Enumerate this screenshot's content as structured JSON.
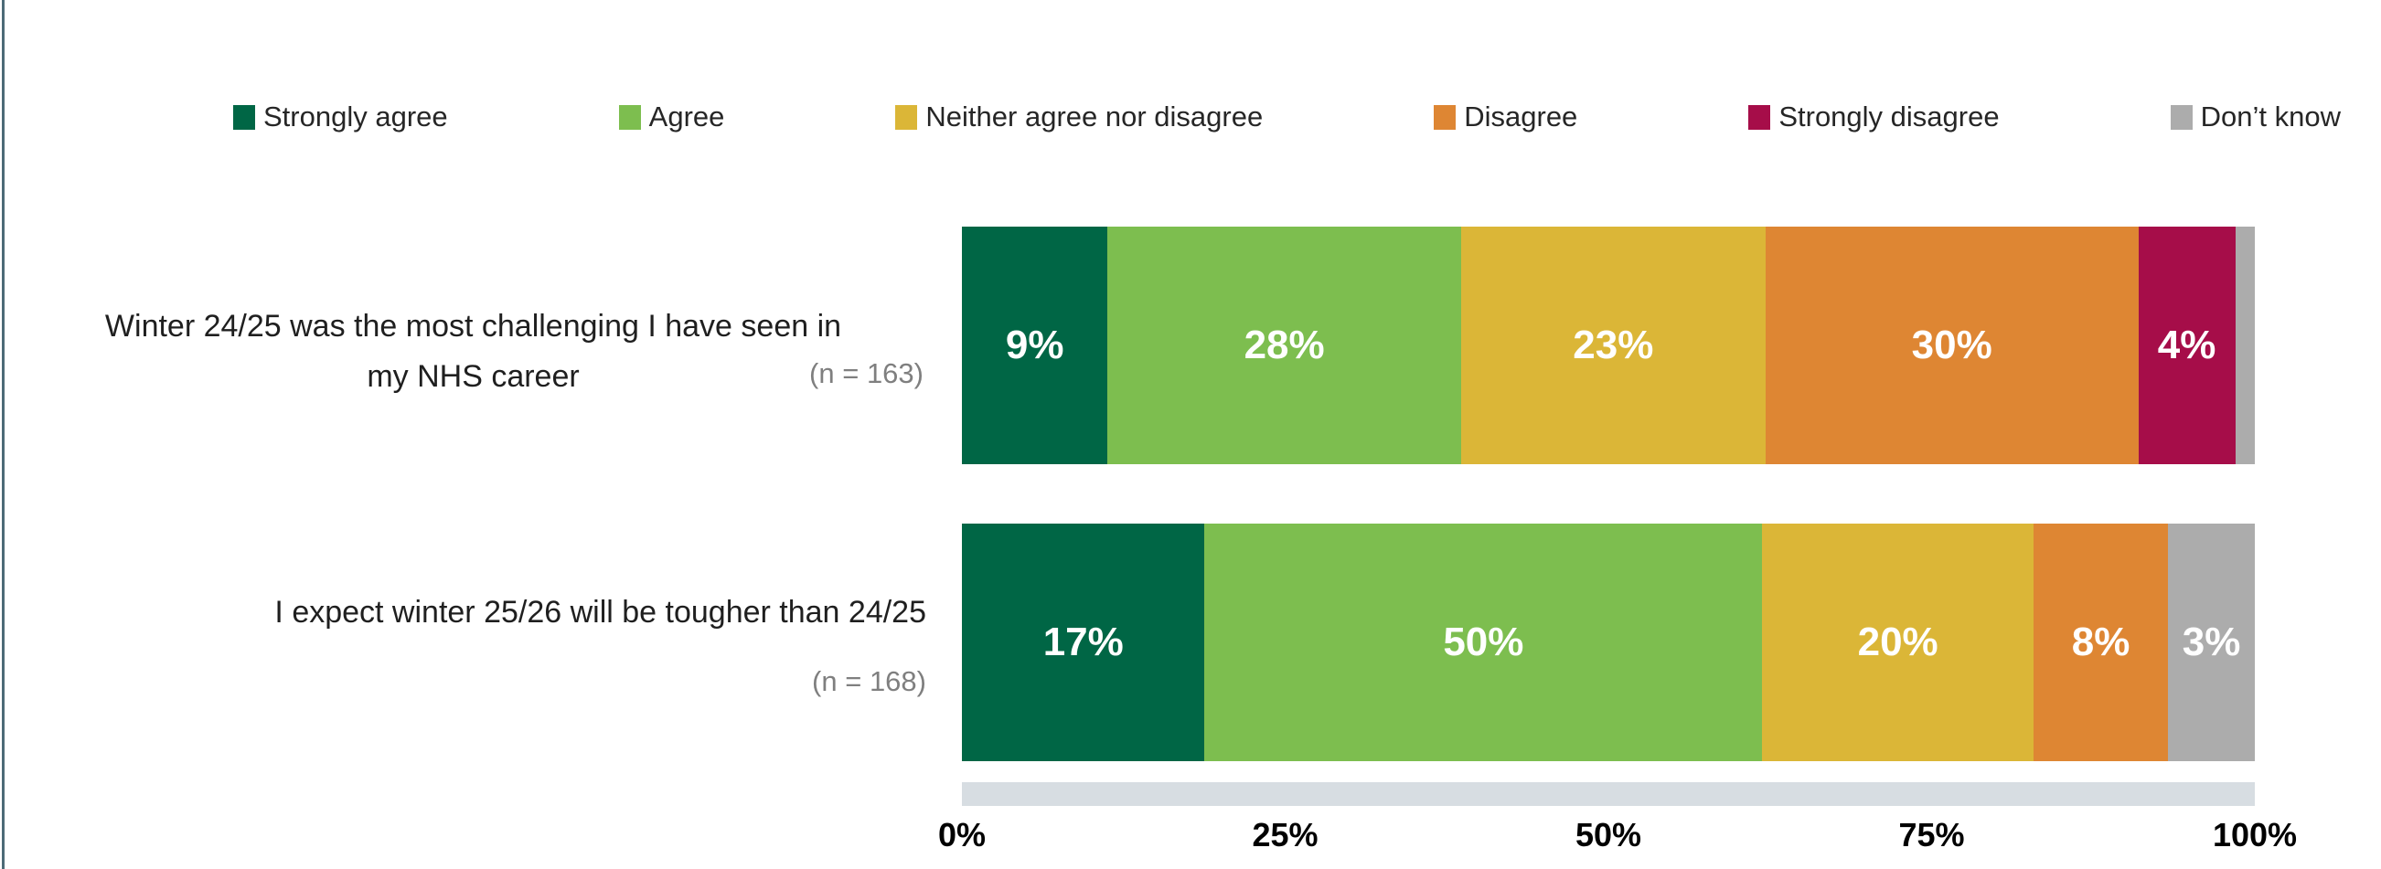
{
  "page": {
    "background": "#ffffff",
    "accent_line_color": "#4D6B77"
  },
  "legend": {
    "items": [
      {
        "label": "Strongly agree",
        "color": "#006645"
      },
      {
        "label": "Agree",
        "color": "#7DBE4F"
      },
      {
        "label": "Neither agree nor disagree",
        "color": "#DBB637"
      },
      {
        "label": "Disagree",
        "color": "#DE8633"
      },
      {
        "label": "Strongly disagree",
        "color": "#A60D49"
      },
      {
        "label": "Don’t know",
        "color": "#ACACAC"
      }
    ]
  },
  "rows": [
    {
      "line1": "Winter 24/25 was the most challenging I have seen in",
      "line2": "my NHS career",
      "n_label": "(n = 163)"
    },
    {
      "line1": "I expect winter 25/26 will be tougher than 24/25",
      "line2": "",
      "n_label": "(n = 168)"
    }
  ],
  "axis": {
    "ticks": [
      "0%",
      "25%",
      "50%",
      "75%",
      "100%"
    ],
    "strip_color": "#D7DDE2"
  },
  "chart_data": {
    "type": "bar",
    "orientation": "horizontal-stacked",
    "title": "",
    "xlabel": "",
    "ylabel": "",
    "legend_position": "top",
    "x_axis_ticks": [
      "0%",
      "25%",
      "50%",
      "75%",
      "100%"
    ],
    "x_range": [
      0,
      100
    ],
    "categories": [
      "Winter 24/25 was the most challenging I have seen in my NHS career (n = 163)",
      "I expect winter 25/26 will be tougher than 24/25 (n = 168)"
    ],
    "series": [
      {
        "name": "Strongly agree",
        "color": "#006645",
        "values": [
          9,
          17
        ]
      },
      {
        "name": "Agree",
        "color": "#7DBE4F",
        "values": [
          28,
          50
        ]
      },
      {
        "name": "Neither agree nor disagree",
        "color": "#DBB637",
        "values": [
          23,
          20
        ]
      },
      {
        "name": "Disagree",
        "color": "#DE8633",
        "values": [
          30,
          8
        ]
      },
      {
        "name": "Strongly disagree",
        "color": "#A60D49",
        "values": [
          4,
          0
        ]
      },
      {
        "name": "Don’t know",
        "color": "#ACACAC",
        "values": [
          2,
          3
        ]
      }
    ],
    "data_labels": [
      [
        "9%",
        "28%",
        "23%",
        "30%",
        "4%",
        ""
      ],
      [
        "17%",
        "50%",
        "20%",
        "8%",
        "",
        "3%"
      ]
    ]
  }
}
